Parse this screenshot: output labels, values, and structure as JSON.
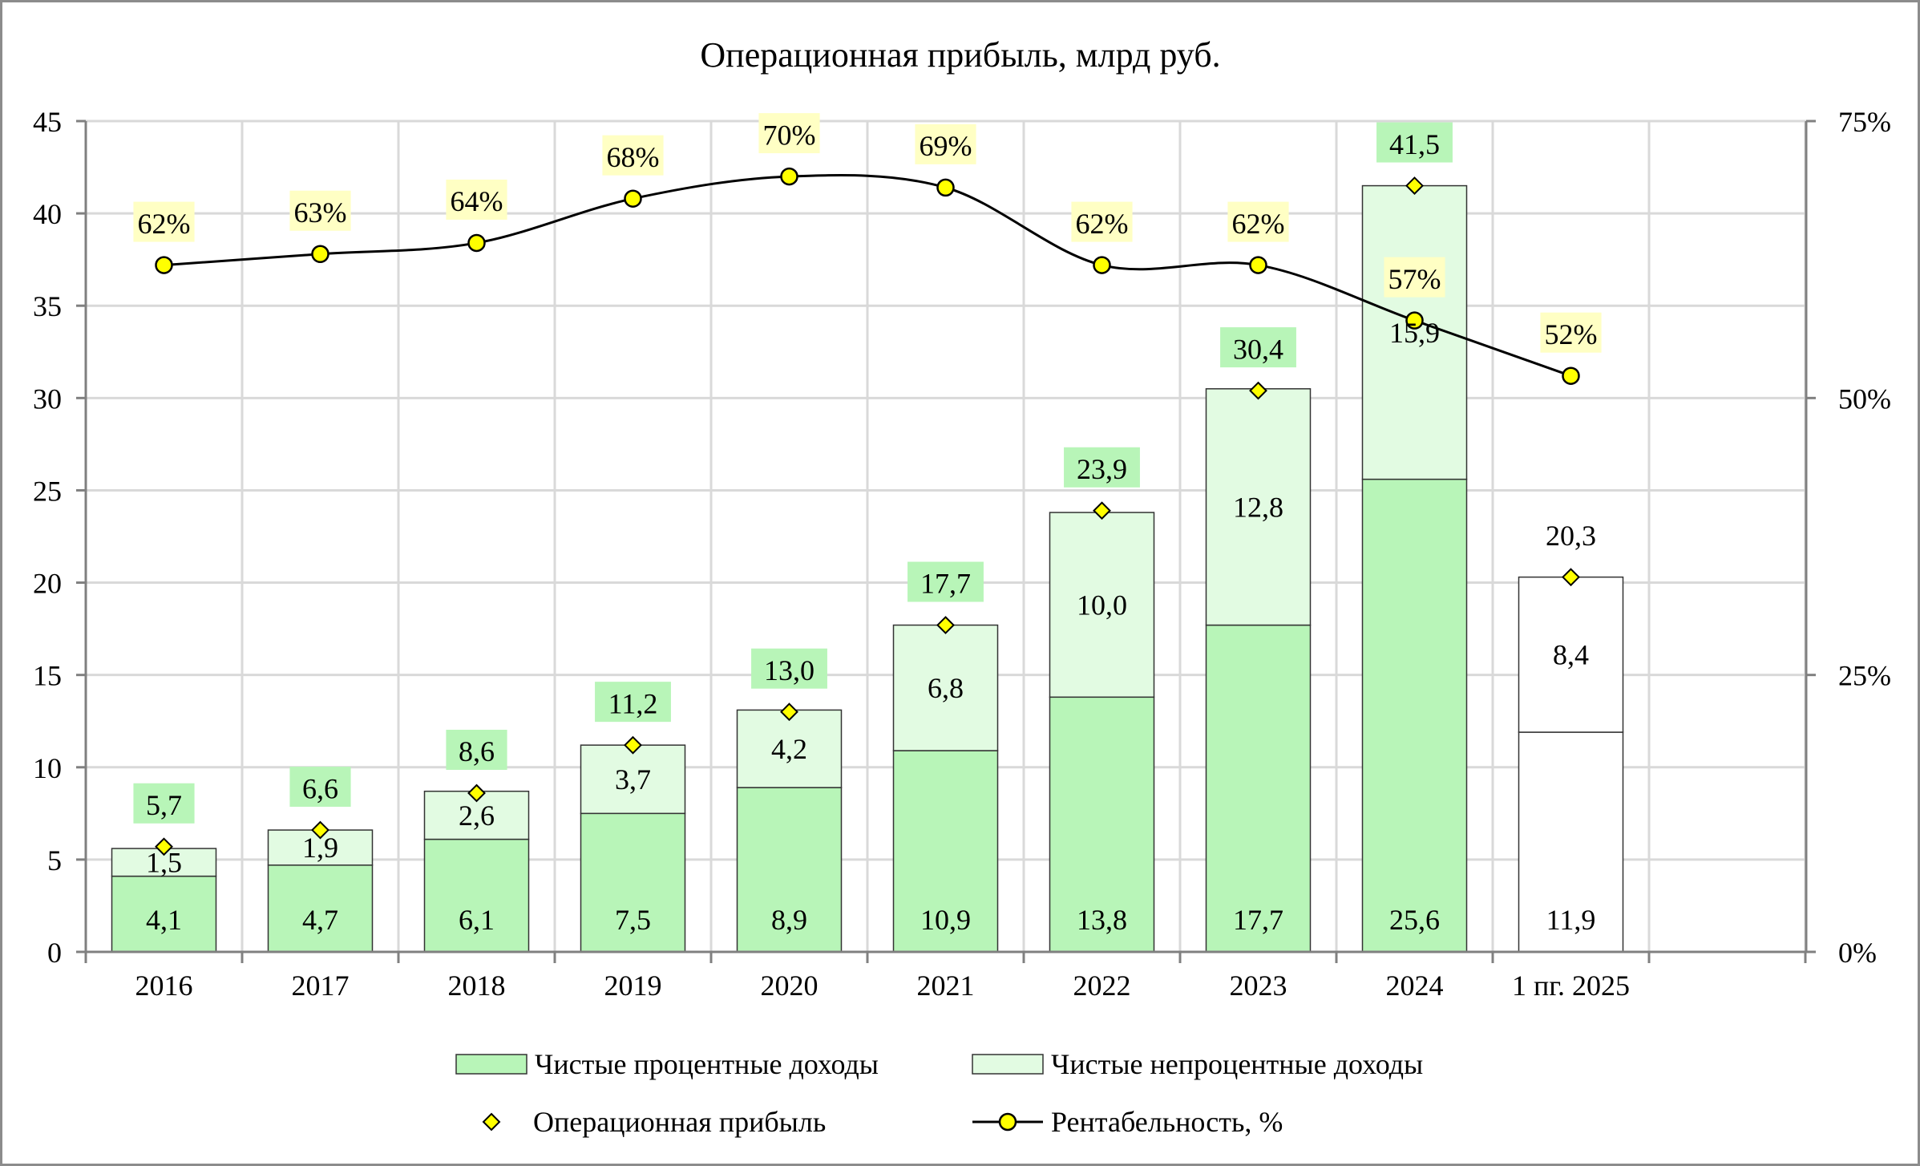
{
  "chart_data": {
    "type": "bar",
    "stacked": true,
    "title": "Операционная прибыль, млрд руб.",
    "categories": [
      "2016",
      "2017",
      "2018",
      "2019",
      "2020",
      "2021",
      "2022",
      "2023",
      "2024",
      "1 пг. 2025"
    ],
    "y_left": {
      "range": [
        0,
        45
      ],
      "ticks": [
        0,
        5,
        10,
        15,
        20,
        25,
        30,
        35,
        40,
        45
      ]
    },
    "y_right": {
      "range": [
        0,
        75
      ],
      "ticks": [
        "0%",
        "25%",
        "50%",
        "75%"
      ],
      "tick_values": [
        0,
        25,
        50,
        75
      ]
    },
    "grid": true,
    "series": [
      {
        "name": "Чистые процентные доходы",
        "kind": "bar",
        "axis": "left",
        "values": [
          4.1,
          4.7,
          6.1,
          7.5,
          8.9,
          10.9,
          13.8,
          17.7,
          25.6,
          11.9
        ],
        "labels": [
          "4,1",
          "4,7",
          "6,1",
          "7,5",
          "8,9",
          "10,9",
          "13,8",
          "17,7",
          "25,6",
          "11,9"
        ],
        "color": "#b8f5b8"
      },
      {
        "name": "Чистые непроцентные доходы",
        "kind": "bar",
        "axis": "left",
        "values": [
          1.5,
          1.9,
          2.6,
          3.7,
          4.2,
          6.8,
          10.0,
          12.8,
          15.9,
          8.4
        ],
        "labels": [
          "1,5",
          "1,9",
          "2,6",
          "3,7",
          "4,2",
          "6,8",
          "10,0",
          "12,8",
          "15,9",
          "8,4"
        ],
        "color": "#e2fbe2"
      },
      {
        "name": "Операционная прибыль",
        "kind": "marker",
        "axis": "left",
        "values": [
          5.7,
          6.6,
          8.6,
          11.2,
          13.0,
          17.7,
          23.9,
          30.4,
          41.5,
          20.3
        ],
        "labels": [
          "5,7",
          "6,6",
          "8,6",
          "11,2",
          "13,0",
          "17,7",
          "23,9",
          "30,4",
          "41,5",
          "20,3"
        ],
        "color": "#ffff00"
      },
      {
        "name": "Рентабельность, %",
        "kind": "line",
        "axis": "right",
        "values": [
          62,
          63,
          64,
          68,
          70,
          69,
          62,
          62,
          57,
          52
        ],
        "labels": [
          "62%",
          "63%",
          "64%",
          "68%",
          "70%",
          "69%",
          "62%",
          "62%",
          "57%",
          "52%"
        ],
        "color": "#ffff00"
      }
    ],
    "last_category_style": "white bars (no fill)",
    "legend_position": "bottom",
    "colors": {
      "interest_fill": "#b8f5b8",
      "noninterest_fill": "#e2fbe2",
      "total_label_bg": "#b8f5b8",
      "percent_label_bg": "#ffffc4",
      "marker_fill": "#ffff00",
      "grid": "#d9d9d9",
      "line": "#000000"
    }
  }
}
